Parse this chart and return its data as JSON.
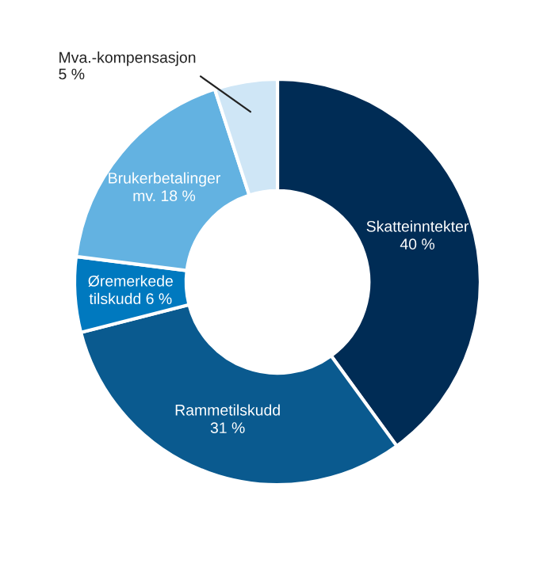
{
  "chart_data": {
    "type": "donut",
    "categories": [
      "Skatteinntekter",
      "Rammetilskudd",
      "Øremerkede tilskudd",
      "Brukerbetalinger mv.",
      "Mva.-kompensasjon"
    ],
    "values": [
      40,
      31,
      6,
      18,
      5
    ],
    "value_labels": [
      "40 %",
      "31 %",
      "6 %",
      "18 %",
      "5 %"
    ],
    "colors": [
      "#002c55",
      "#0a5a8f",
      "#0079bf",
      "#63b2e1",
      "#cfe6f6"
    ],
    "legend": false
  }
}
